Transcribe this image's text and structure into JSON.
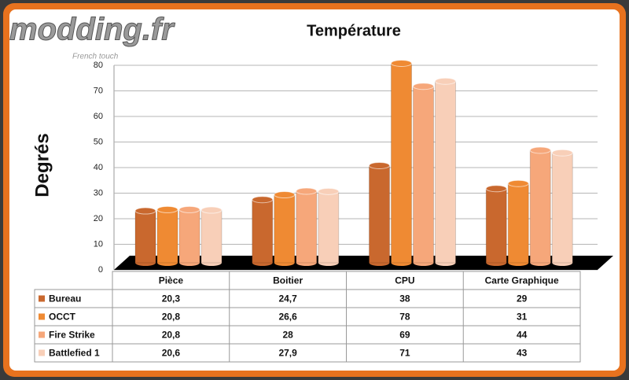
{
  "chart_data": {
    "type": "bar3d",
    "title": "Température",
    "y_label": "Degrés",
    "watermark": "modding.fr",
    "watermark_subtitle": "French touch",
    "categories": [
      "Pièce",
      "Boitier",
      "CPU",
      "Carte Graphique"
    ],
    "series": [
      {
        "name": "Bureau",
        "color": "#c9682e",
        "values": [
          20.3,
          24.7,
          38,
          29
        ],
        "value_labels": [
          "20,3",
          "24,7",
          "38",
          "29"
        ]
      },
      {
        "name": "OCCT",
        "color": "#ef8a33",
        "values": [
          20.8,
          26.6,
          78,
          31
        ],
        "value_labels": [
          "20,8",
          "26,6",
          "78",
          "31"
        ]
      },
      {
        "name": "Fire Strike",
        "color": "#f6a77a",
        "values": [
          20.8,
          28,
          69,
          44
        ],
        "value_labels": [
          "20,8",
          "28",
          "69",
          "44"
        ]
      },
      {
        "name": "Battlefied 1",
        "color": "#f8cfb8",
        "values": [
          20.6,
          27.9,
          71,
          43
        ],
        "value_labels": [
          "20,6",
          "27,9",
          "71",
          "43"
        ]
      }
    ],
    "ylim": [
      0,
      80
    ],
    "yticks": [
      0,
      10,
      20,
      30,
      40,
      50,
      60,
      70,
      80
    ],
    "grid": true,
    "legend": "table"
  }
}
